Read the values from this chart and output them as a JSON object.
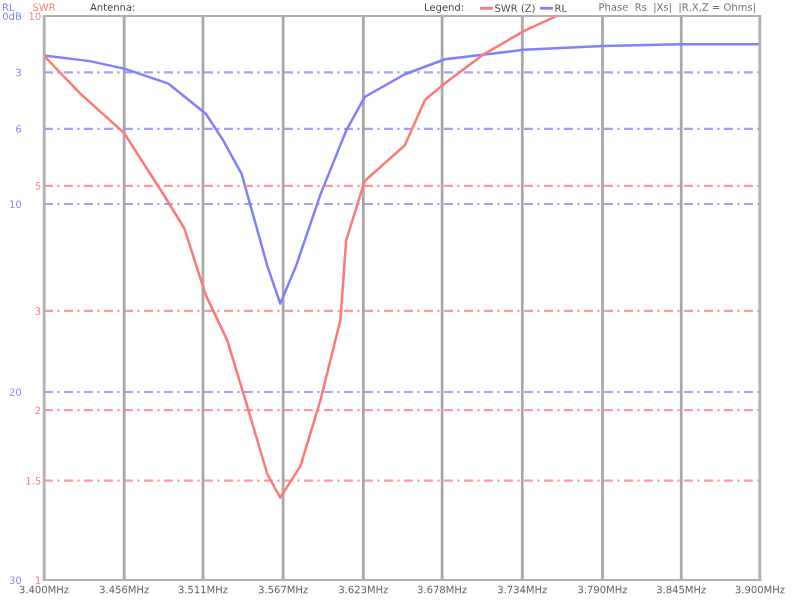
{
  "chart_data": {
    "type": "line",
    "title": "Antenna:",
    "ylabel": "RL",
    "y2label": "SWR",
    "legend_title": "Legend:",
    "annotations": [
      "Phase  Rs  |Xs|  |R,X,Z = Ohms|"
    ],
    "series": [
      {
        "name": "SWR (Z)",
        "color": "#ff7878",
        "axis": "y2",
        "x": [
          3.4,
          3.425,
          3.456,
          3.484,
          3.498,
          3.513,
          3.528,
          3.542,
          3.556,
          3.565,
          3.579,
          3.593,
          3.607,
          3.611,
          3.624,
          3.652,
          3.666,
          3.68,
          3.707,
          3.735,
          3.758
        ],
        "values": [
          8.5,
          7.3,
          6.2,
          4.8,
          4.2,
          3.2,
          2.66,
          2.03,
          1.54,
          1.4,
          1.59,
          2.08,
          2.89,
          4.0,
          5.1,
          5.9,
          7.1,
          7.6,
          8.55,
          9.4,
          10
        ]
      },
      {
        "name": "RL",
        "color": "#8080ff",
        "x": [
          3.4,
          3.432,
          3.456,
          3.487,
          3.513,
          3.525,
          3.538,
          3.556,
          3.565,
          3.576,
          3.593,
          3.611,
          3.624,
          3.652,
          3.68,
          3.735,
          3.79,
          3.845,
          3.9
        ],
        "values": [
          2.1,
          2.4,
          2.8,
          3.6,
          5.2,
          6.6,
          8.4,
          13.3,
          15.3,
          13.3,
          9.5,
          6.1,
          4.3,
          3.1,
          2.3,
          1.8,
          1.6,
          1.5,
          1.5
        ]
      }
    ],
    "xlim": [
      3.4,
      3.9
    ],
    "xticks": [
      {
        "value": 3.4,
        "label": "3.400MHz"
      },
      {
        "value": 3.456,
        "label": "3.456MHz"
      },
      {
        "value": 3.511,
        "label": "3.511MHz"
      },
      {
        "value": 3.567,
        "label": "3.567MHz"
      },
      {
        "value": 3.623,
        "label": "3.623MHz"
      },
      {
        "value": 3.678,
        "label": "3.678MHz"
      },
      {
        "value": 3.734,
        "label": "3.734MHz"
      },
      {
        "value": 3.79,
        "label": "3.790MHz"
      },
      {
        "value": 3.845,
        "label": "3.845MHz"
      },
      {
        "value": 3.9,
        "label": "3.900MHz"
      }
    ],
    "ylim": [
      30,
      0
    ],
    "yticks": [
      {
        "value": 0,
        "label": "0dB"
      },
      3,
      6,
      10,
      20,
      30
    ],
    "y2lim": [
      1,
      10
    ],
    "y2ticks": [
      1,
      1.5,
      2,
      3,
      5,
      10
    ],
    "log": "y2",
    "grid": true,
    "legend": "top right",
    "line_style": "solid",
    "marker": "none"
  }
}
